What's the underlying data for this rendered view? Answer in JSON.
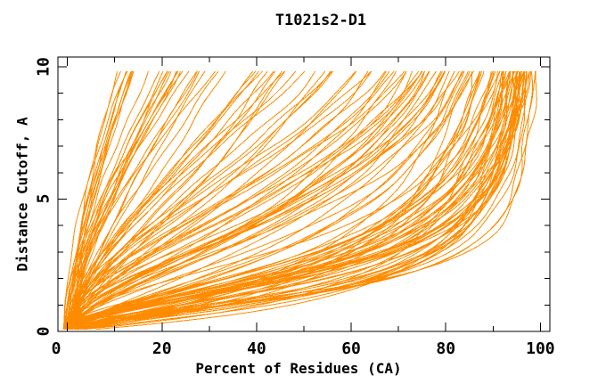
{
  "figure": {
    "background": "#ffffff",
    "frame_color": "#000000",
    "text_color": "#000000"
  },
  "chart_data": {
    "type": "line",
    "title": "T1021s2-D1",
    "xlabel": "Percent of Residues (CA)",
    "ylabel": "Distance Cutoff, A",
    "xlim": [
      -2,
      102
    ],
    "ylim": [
      0,
      10.37
    ],
    "x_major_ticks": [
      0,
      20,
      40,
      60,
      80,
      100
    ],
    "x_minor_ticks": [
      10,
      30,
      50,
      70,
      90
    ],
    "y_major_ticks": [
      0,
      5,
      10
    ],
    "y_minor_ticks": [
      1,
      2,
      3,
      4,
      6,
      7,
      8,
      9
    ],
    "grid": false,
    "legend": null,
    "line_color": "#ff8c00",
    "n_curves": 142,
    "series_description": "Ensemble of ~142 per-model cumulative accuracy curves for target T1021s2-D1: x = percent of CA residues whose distance error is below the cutoff y (Angstrom). All curves rise from about (2%, 0 A); their tops at ~9.85 A span from ~10% (worst models, steep left fan) to ~100% (best models, dense right bundle).",
    "curve_model": "x(y) = x0 + (100 - x0) * ((y/s)^a) / (1 + (y/s)^a)",
    "y_sample_range": [
      0.08,
      9.85
    ],
    "curve_groups": [
      {
        "count": 52,
        "s_range": [
          1.1,
          2.8
        ],
        "a_range": [
          1.1,
          2.4
        ],
        "note": "best models, tops ~88-100%"
      },
      {
        "count": 30,
        "s_range": [
          2.8,
          6.0
        ],
        "a_range": [
          1.4,
          2.3
        ],
        "note": "tops ~72-90%"
      },
      {
        "count": 18,
        "s_range": [
          6.0,
          9.5
        ],
        "a_range": [
          1.5,
          2.3
        ],
        "note": "tops ~54-70%"
      },
      {
        "count": 12,
        "s_range": [
          9.5,
          14.0
        ],
        "a_range": [
          1.4,
          2.2
        ],
        "note": "tops ~38-54%"
      },
      {
        "count": 22,
        "s_range": [
          14.0,
          26.0
        ],
        "a_range": [
          1.4,
          2.1
        ],
        "note": "tops ~15-38%"
      },
      {
        "count": 8,
        "s_range": [
          26.0,
          33.0
        ],
        "a_range": [
          1.5,
          2.0
        ],
        "note": "worst models, tops ~10-15%"
      }
    ],
    "x0_range": [
      -1.0,
      2.0
    ],
    "seed": 7
  }
}
